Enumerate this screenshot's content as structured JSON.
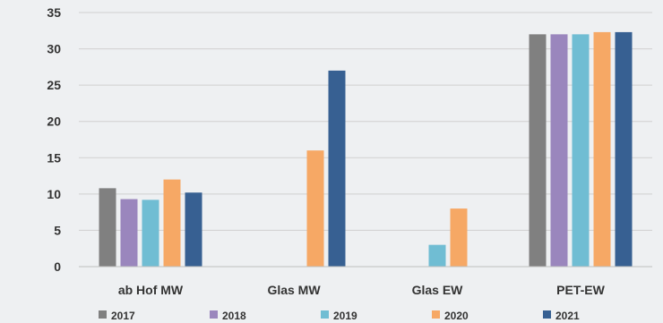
{
  "chart_data": {
    "type": "bar",
    "title": "",
    "xlabel": "",
    "ylabel": "",
    "ylim": [
      0,
      35
    ],
    "yticks": [
      0,
      5,
      10,
      15,
      20,
      25,
      30,
      35
    ],
    "grid": true,
    "legend": "bottom",
    "categories": [
      "ab Hof MW",
      "Glas MW",
      "Glas EW",
      "PET-EW"
    ],
    "series": [
      {
        "name": "2017",
        "color": "#808080",
        "values": [
          10.8,
          null,
          null,
          32.0
        ]
      },
      {
        "name": "2018",
        "color": "#9a86bd",
        "values": [
          9.3,
          null,
          null,
          32.0
        ]
      },
      {
        "name": "2019",
        "color": "#70bdd3",
        "values": [
          9.2,
          null,
          3.0,
          32.0
        ]
      },
      {
        "name": "2020",
        "color": "#f6a865",
        "values": [
          12.0,
          16.0,
          8.0,
          32.3
        ]
      },
      {
        "name": "2021",
        "color": "#376092",
        "values": [
          10.2,
          27.0,
          null,
          32.3
        ]
      }
    ]
  }
}
